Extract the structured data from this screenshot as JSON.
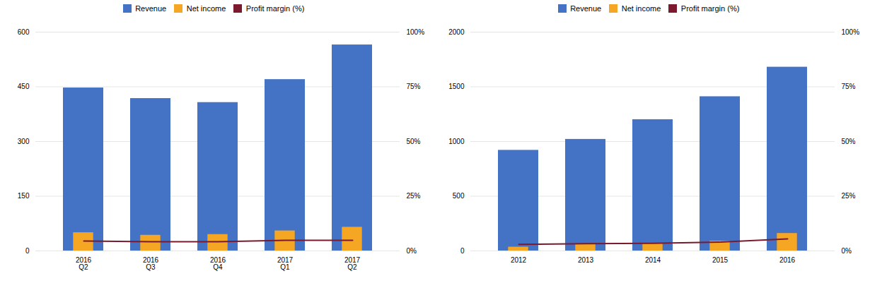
{
  "chart_data": [
    {
      "type": "bar",
      "categories": [
        "2016\nQ2",
        "2016\nQ3",
        "2016\nQ4",
        "2017\nQ1",
        "2017\nQ2"
      ],
      "series": [
        {
          "name": "Revenue",
          "color": "#4472c4",
          "values": [
            447,
            418,
            407,
            470,
            565
          ]
        },
        {
          "name": "Net income",
          "color": "#f5a623",
          "values": [
            50,
            43,
            45,
            55,
            65
          ]
        },
        {
          "name": "Profit margin (%)",
          "color": "#7b1a2e",
          "type": "line",
          "axis": "y2",
          "values": [
            4.5,
            4.2,
            4.2,
            4.8,
            4.8
          ]
        }
      ],
      "ylim": [
        0,
        600
      ],
      "yticks": [
        0,
        150,
        300,
        450,
        600
      ],
      "y2lim": [
        0,
        100
      ],
      "y2ticks": [
        {
          "value": 0,
          "label": "0%"
        },
        {
          "value": 25,
          "label": "25%"
        },
        {
          "value": 50,
          "label": "50%"
        },
        {
          "value": 75,
          "label": "75%"
        },
        {
          "value": 100,
          "label": "100%"
        }
      ],
      "grid": true,
      "legend": "top"
    },
    {
      "type": "bar",
      "categories": [
        "2012",
        "2013",
        "2014",
        "2015",
        "2016"
      ],
      "series": [
        {
          "name": "Revenue",
          "color": "#4472c4",
          "values": [
            920,
            1020,
            1200,
            1410,
            1680
          ]
        },
        {
          "name": "Net income",
          "color": "#f5a623",
          "values": [
            35,
            60,
            70,
            90,
            160
          ]
        },
        {
          "name": "Profit margin (%)",
          "color": "#7b1a2e",
          "type": "line",
          "axis": "y2",
          "values": [
            3.0,
            3.3,
            3.5,
            4.0,
            5.5
          ]
        }
      ],
      "ylim": [
        0,
        2000
      ],
      "yticks": [
        0,
        500,
        1000,
        1500,
        2000
      ],
      "y2lim": [
        0,
        100
      ],
      "y2ticks": [
        {
          "value": 0,
          "label": "0%"
        },
        {
          "value": 25,
          "label": "25%"
        },
        {
          "value": 50,
          "label": "50%"
        },
        {
          "value": 75,
          "label": "75%"
        },
        {
          "value": 100,
          "label": "100%"
        }
      ],
      "grid": true,
      "legend": "top"
    }
  ]
}
